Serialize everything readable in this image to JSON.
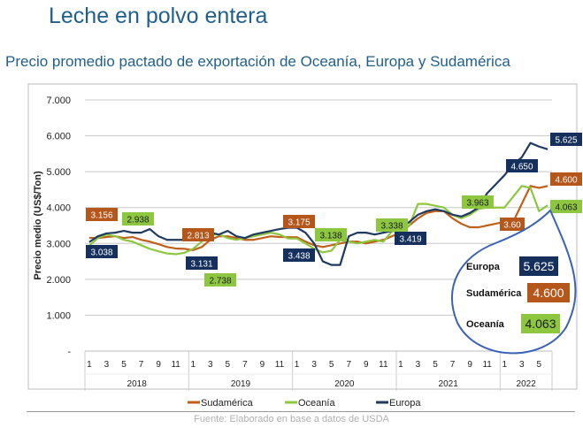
{
  "title": "Leche en polvo entera",
  "subtitle": "Precio promedio pactado de exportación de Oceanía, Europa y Sudamérica",
  "source": "Fuente: Elaborado en base a datos de USDA",
  "chart_data": {
    "type": "line",
    "ylabel": "Precio medio (US$/Ton)",
    "ylim": [
      0,
      7000
    ],
    "yticks": [
      "-",
      "1.000",
      "2.000",
      "3.000",
      "4.000",
      "5.000",
      "6.000",
      "7.000"
    ],
    "grid": true,
    "legend_position": "bottom",
    "years": [
      "2018",
      "2019",
      "2020",
      "2021",
      "2022"
    ],
    "month_ticks": [
      "1",
      "3",
      "5",
      "7",
      "9",
      "11"
    ],
    "month_ticks_2022": [
      "1",
      "3",
      "5"
    ],
    "series": [
      {
        "name": "Sudamérica",
        "color": "#c0601a",
        "values": [
          3156,
          3150,
          3180,
          3200,
          3150,
          3180,
          3100,
          3050,
          2980,
          2900,
          2860,
          2850,
          2813,
          2900,
          3100,
          3200,
          3200,
          3150,
          3100,
          3100,
          3150,
          3200,
          3180,
          3175,
          3175,
          3050,
          2950,
          2900,
          2950,
          3000,
          3050,
          3050,
          3000,
          3050,
          3100,
          3200,
          3300,
          3500,
          3700,
          3850,
          3900,
          3900,
          3700,
          3550,
          3450,
          3450,
          3500,
          3550,
          3600,
          3600,
          4100,
          4600,
          4550,
          4600
        ]
      },
      {
        "name": "Oceanía",
        "color": "#8dc63f",
        "values": [
          2938,
          3150,
          3250,
          3200,
          3100,
          3050,
          2950,
          2850,
          2780,
          2720,
          2700,
          2738,
          2850,
          3050,
          3250,
          3250,
          3150,
          3100,
          3150,
          3200,
          3250,
          3300,
          3250,
          3138,
          3138,
          3000,
          2850,
          2750,
          2800,
          3100,
          3050,
          3000,
          3050,
          3100,
          3050,
          3338,
          3338,
          3500,
          4100,
          4100,
          4050,
          4000,
          3800,
          3700,
          3800,
          3963,
          4000,
          4000,
          4000,
          4300,
          4600,
          4550,
          3900,
          4063
        ]
      },
      {
        "name": "Europa",
        "color": "#1f3a60",
        "values": [
          3038,
          3200,
          3280,
          3300,
          3350,
          3300,
          3300,
          3400,
          3200,
          3100,
          3100,
          3100,
          3131,
          3250,
          3300,
          3250,
          3350,
          3200,
          3150,
          3250,
          3300,
          3350,
          3400,
          3438,
          3438,
          3300,
          3000,
          2500,
          2400,
          2400,
          3200,
          3300,
          3300,
          3250,
          3300,
          3350,
          3419,
          3600,
          3800,
          3900,
          3950,
          3900,
          3800,
          3750,
          3850,
          4000,
          4400,
          4650,
          4900,
          5200,
          5400,
          5800,
          5700,
          5625
        ]
      }
    ],
    "annotations": [
      {
        "series": "Sudamérica",
        "text": "3.156"
      },
      {
        "series": "Oceanía",
        "text": "2.938"
      },
      {
        "series": "Europa",
        "text": "3.038"
      },
      {
        "series": "Sudamérica",
        "text": "2.813"
      },
      {
        "series": "Europa",
        "text": "3.131"
      },
      {
        "series": "Oceanía",
        "text": "2.738"
      },
      {
        "series": "Sudamérica",
        "text": "3.175"
      },
      {
        "series": "Oceanía",
        "text": "3.138"
      },
      {
        "series": "Europa",
        "text": "3.438"
      },
      {
        "series": "Oceanía",
        "text": "3.338"
      },
      {
        "series": "Europa",
        "text": "3.419"
      },
      {
        "series": "Europa",
        "text": "4.650"
      },
      {
        "series": "Oceanía",
        "text": "3.963"
      },
      {
        "series": "Sudamérica",
        "text": "3.60"
      },
      {
        "series": "Europa",
        "text": "5.625"
      },
      {
        "series": "Sudamérica",
        "text": "4.600"
      },
      {
        "series": "Oceanía",
        "text": "4.063"
      }
    ],
    "callout": [
      {
        "label": "Europa",
        "value": "5.625",
        "color": "#16305e"
      },
      {
        "label": "Sudamérica",
        "value": "4.600",
        "color": "#b5561b"
      },
      {
        "label": "Oceanía",
        "value": "4.063",
        "color": "#8dc63f"
      }
    ]
  }
}
